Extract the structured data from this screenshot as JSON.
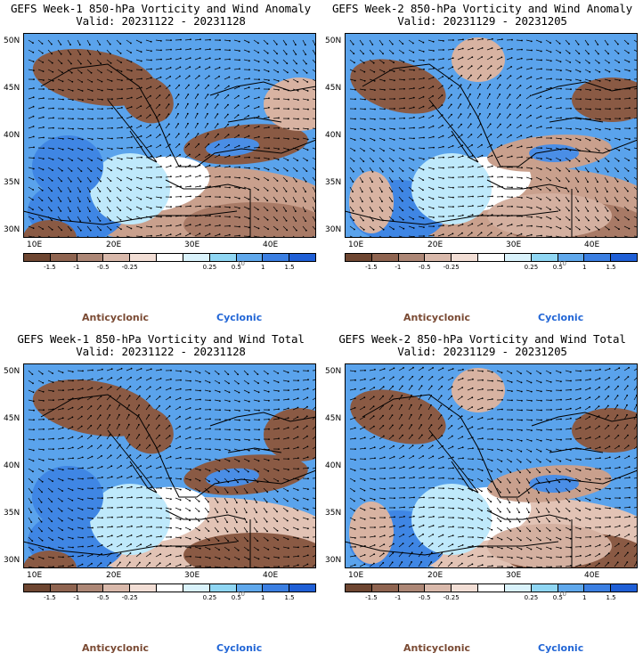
{
  "panels": [
    {
      "title_line1": "GEFS Week-1 850-hPa Vorticity and Wind Anomaly",
      "title_line2": "Valid: 20231122 - 20231128"
    },
    {
      "title_line1": "GEFS Week-2 850-hPa Vorticity and Wind Anomaly",
      "title_line2": "Valid: 20231129 - 20231205"
    },
    {
      "title_line1": "GEFS Week-1 850-hPa Vorticity and Wind Total",
      "title_line2": "Valid: 20231122 - 20231128"
    },
    {
      "title_line1": "GEFS Week-2 850-hPa Vorticity and Wind Total",
      "title_line2": "Valid: 20231129 - 20231205"
    }
  ],
  "lat_labels": [
    "50N",
    "45N",
    "40N",
    "35N",
    "30N"
  ],
  "lon_labels": [
    "10E",
    "20E",
    "30E",
    "40E"
  ],
  "colorbar": {
    "labels": [
      "-1.5",
      "-1",
      "-0.5",
      "-0.25",
      "0.25",
      "0.5",
      "1",
      "1.5"
    ],
    "colors": [
      "#6e4631",
      "#8f6450",
      "#ad8776",
      "#d9b9ab",
      "#f2ded5",
      "#ffffff",
      "#d9f2fb",
      "#8fd6f3",
      "#5fa8ec",
      "#3b7fe2",
      "#1f5fd6"
    ],
    "vector_ref": "10"
  },
  "legend": {
    "anticyclonic": "Anticyclonic",
    "cyclonic": "Cyclonic"
  },
  "colors": {
    "anticyclonic": "#7a4a33",
    "cyclonic": "#2266d6",
    "brown": "#8a5a44",
    "blue": "#2f79e0"
  }
}
